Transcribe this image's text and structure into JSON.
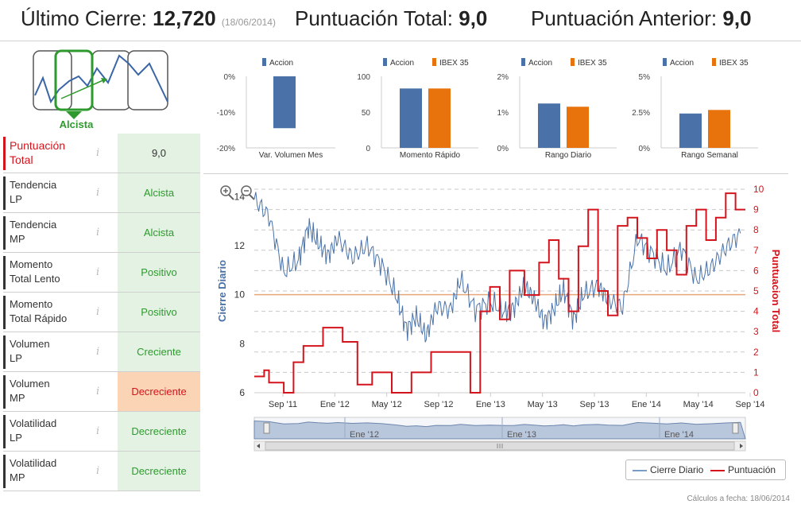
{
  "header": {
    "last_close_label": "Último Cierre:",
    "last_close_value": "12,720",
    "last_close_date": "(18/06/2014)",
    "total_score_label": "Puntuación Total:",
    "total_score_value": "9,0",
    "prev_score_label": "Puntuación Anterior:",
    "prev_score_value": "9,0"
  },
  "trend": {
    "label": "Alcista"
  },
  "rows": [
    {
      "name_1": "Puntuación",
      "name_2": "Total",
      "info": "i",
      "value": "9,0"
    },
    {
      "name_1": "Tendencia",
      "name_2": "LP",
      "info": "i",
      "value": "Alcista"
    },
    {
      "name_1": "Tendencia",
      "name_2": "MP",
      "info": "i",
      "value": "Alcista"
    },
    {
      "name_1": "Momento",
      "name_2": "Total Lento",
      "info": "i",
      "value": "Positivo"
    },
    {
      "name_1": "Momento",
      "name_2": "Total Rápido",
      "info": "i",
      "value": "Positivo"
    },
    {
      "name_1": "Volumen",
      "name_2": "LP",
      "info": "i",
      "value": "Creciente"
    },
    {
      "name_1": "Volumen",
      "name_2": "MP",
      "info": "i",
      "value": "Decreciente"
    },
    {
      "name_1": "Volatilidad",
      "name_2": "LP",
      "info": "i",
      "value": "Decreciente"
    },
    {
      "name_1": "Volatilidad",
      "name_2": "MP",
      "info": "i",
      "value": "Decreciente"
    }
  ],
  "colors": {
    "accion": "#4a72a8",
    "ibex": "#e8720c",
    "score": "#d4141c",
    "green": "#2e9a2e"
  },
  "chart_data": [
    {
      "type": "bar",
      "title": "Var. Volumen Mes",
      "legend": [
        "Accion"
      ],
      "y_ticks": [
        "0%",
        "-10%",
        "-20%"
      ],
      "ylim": [
        -20,
        0
      ],
      "series": [
        {
          "name": "Accion",
          "values": [
            -14.5
          ]
        }
      ]
    },
    {
      "type": "bar",
      "title": "Momento Rápido",
      "legend": [
        "Accion",
        "IBEX 35"
      ],
      "y_ticks": [
        "100",
        "50",
        "0"
      ],
      "ylim": [
        0,
        100
      ],
      "series": [
        {
          "name": "Accion",
          "values": [
            83
          ]
        },
        {
          "name": "IBEX 35",
          "values": [
            83
          ]
        }
      ]
    },
    {
      "type": "bar",
      "title": "Rango Diario",
      "legend": [
        "Accion",
        "IBEX 35"
      ],
      "y_ticks": [
        "2%",
        "1%",
        "0%"
      ],
      "ylim": [
        0,
        2
      ],
      "series": [
        {
          "name": "Accion",
          "values": [
            1.24
          ]
        },
        {
          "name": "IBEX 35",
          "values": [
            1.15
          ]
        }
      ]
    },
    {
      "type": "bar",
      "title": "Rango Semanal",
      "legend": [
        "Accion",
        "IBEX 35"
      ],
      "y_ticks": [
        "5%",
        "2.5%",
        "0%"
      ],
      "ylim": [
        0,
        5
      ],
      "series": [
        {
          "name": "Accion",
          "values": [
            2.4
          ]
        },
        {
          "name": "IBEX 35",
          "values": [
            2.65
          ]
        }
      ]
    },
    {
      "type": "line",
      "title": "",
      "ylabel_left": "Cierre Diario",
      "ylabel_right": "Puntuacion Total",
      "x_ticks": [
        "Sep '11",
        "Ene '12",
        "May '12",
        "Sep '12",
        "Ene '13",
        "May '13",
        "Sep '13",
        "Ene '14",
        "May '14",
        "Sep '14"
      ],
      "y_left_ticks": [
        "14",
        "12",
        "10",
        "8",
        "6"
      ],
      "y_right_ticks": [
        "10",
        "9",
        "8",
        "7",
        "6",
        "5",
        "4",
        "3",
        "2",
        "1",
        "0"
      ],
      "ylim_left": [
        6,
        14.3
      ],
      "ylim_right": [
        0,
        10
      ],
      "reference_line": 10,
      "navigator_labels": [
        "Ene '12",
        "Ene '13",
        "Ene '14"
      ],
      "series": [
        {
          "name": "Cierre Diario",
          "x": [
            0,
            0.03,
            0.06,
            0.09,
            0.11,
            0.13,
            0.15,
            0.17,
            0.2,
            0.23,
            0.26,
            0.29,
            0.31,
            0.33,
            0.35,
            0.37,
            0.4,
            0.42,
            0.45,
            0.48,
            0.51,
            0.53,
            0.55,
            0.57,
            0.59,
            0.61,
            0.63,
            0.65,
            0.67,
            0.7,
            0.72,
            0.75,
            0.78,
            0.81,
            0.84,
            0.87,
            0.9,
            0.93,
            0.96,
            0.99
          ],
          "values": [
            13.9,
            13.2,
            10.9,
            11.4,
            12.8,
            12.1,
            11.6,
            12.3,
            11.5,
            12.0,
            11.2,
            9.9,
            8.6,
            9.1,
            8.3,
            9.5,
            9.4,
            10.6,
            9.4,
            9.7,
            9.3,
            9.5,
            10.4,
            9.8,
            8.9,
            9.4,
            10.2,
            9.0,
            10.0,
            10.4,
            9.8,
            9.5,
            12.3,
            11.7,
            11.0,
            11.9,
            10.6,
            11.1,
            11.9,
            12.5
          ]
        },
        {
          "name": "Puntuación",
          "x": [
            0,
            0.02,
            0.03,
            0.06,
            0.08,
            0.1,
            0.14,
            0.18,
            0.21,
            0.24,
            0.28,
            0.32,
            0.36,
            0.4,
            0.44,
            0.46,
            0.48,
            0.5,
            0.52,
            0.55,
            0.58,
            0.6,
            0.62,
            0.64,
            0.66,
            0.68,
            0.7,
            0.72,
            0.74,
            0.76,
            0.78,
            0.8,
            0.82,
            0.84,
            0.86,
            0.88,
            0.9,
            0.92,
            0.94,
            0.96,
            0.98,
            1.0
          ],
          "values": [
            0.8,
            1.1,
            0.5,
            0.0,
            1.5,
            2.3,
            3.2,
            2.5,
            0.4,
            1.0,
            0.0,
            1.0,
            2.0,
            2.0,
            0.0,
            4.0,
            5.2,
            3.6,
            6.0,
            4.8,
            6.4,
            7.5,
            5.6,
            4.0,
            7.2,
            9.0,
            5.0,
            3.8,
            8.2,
            8.6,
            7.6,
            6.6,
            8.0,
            7.0,
            5.8,
            8.2,
            9.0,
            7.5,
            8.6,
            9.8,
            9.0,
            9.0
          ]
        }
      ]
    }
  ],
  "legend": {
    "series_1": "Cierre Diario",
    "series_2": "Puntuación"
  },
  "footer": {
    "calc_date": "Cálculos a fecha: 18/06/2014"
  }
}
